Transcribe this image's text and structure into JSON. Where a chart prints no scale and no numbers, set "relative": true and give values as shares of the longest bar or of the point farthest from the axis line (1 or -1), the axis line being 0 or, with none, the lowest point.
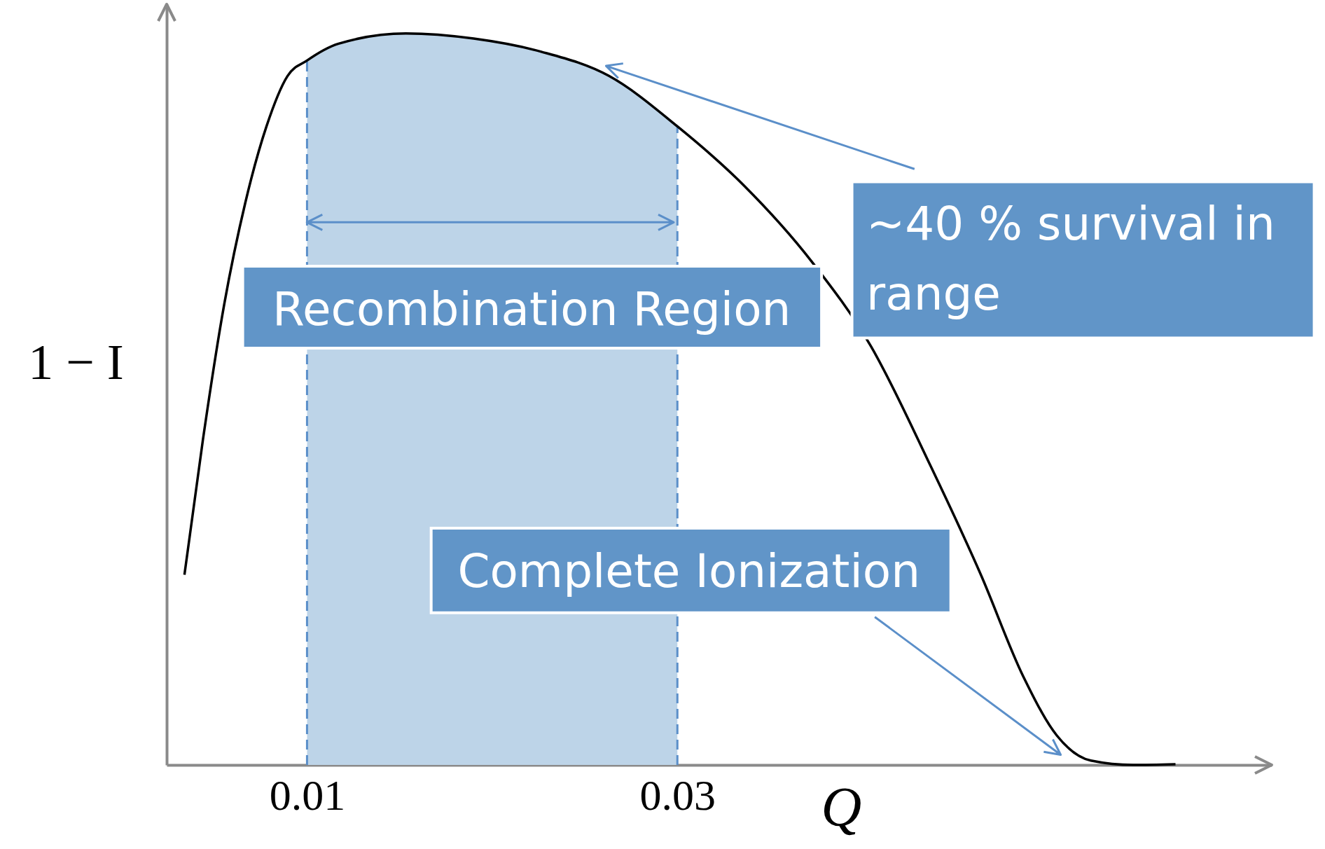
{
  "chart_data": {
    "type": "line",
    "relative": true,
    "xlabel": "Q",
    "ylabel": "1 − I",
    "x": [
      0.00338,
      0.00438,
      0.00553,
      0.00667,
      0.00781,
      0.00895,
      0.01,
      0.0117,
      0.01534,
      0.019,
      0.02265,
      0.0263,
      0.03,
      0.0336,
      0.03726,
      0.04046,
      0.04365,
      0.04639,
      0.04868,
      0.0505,
      0.05233,
      0.05461,
      0.0569
    ],
    "series": [
      {
        "color": "#000000",
        "values": [
          0.26,
          0.445,
          0.63,
          0.769,
          0.873,
          0.942,
          0.963,
          0.986,
          1.0,
          0.993,
          0.975,
          0.942,
          0.873,
          0.792,
          0.688,
          0.572,
          0.41,
          0.26,
          0.121,
          0.04,
          0.006,
          0,
          0.001
        ]
      }
    ],
    "xlim": [
      0.00242,
      0.0621
    ],
    "xticks": [
      0.01,
      0.03
    ],
    "marker": "none",
    "line_style": "solid",
    "bands": [
      {
        "axis": "x",
        "from": 0.01,
        "to": 0.03,
        "label": "Recombination Region",
        "color": "#bdd4e8"
      }
    ],
    "annotations": [
      "~40 % survival in range",
      "Complete Ionization"
    ]
  }
}
